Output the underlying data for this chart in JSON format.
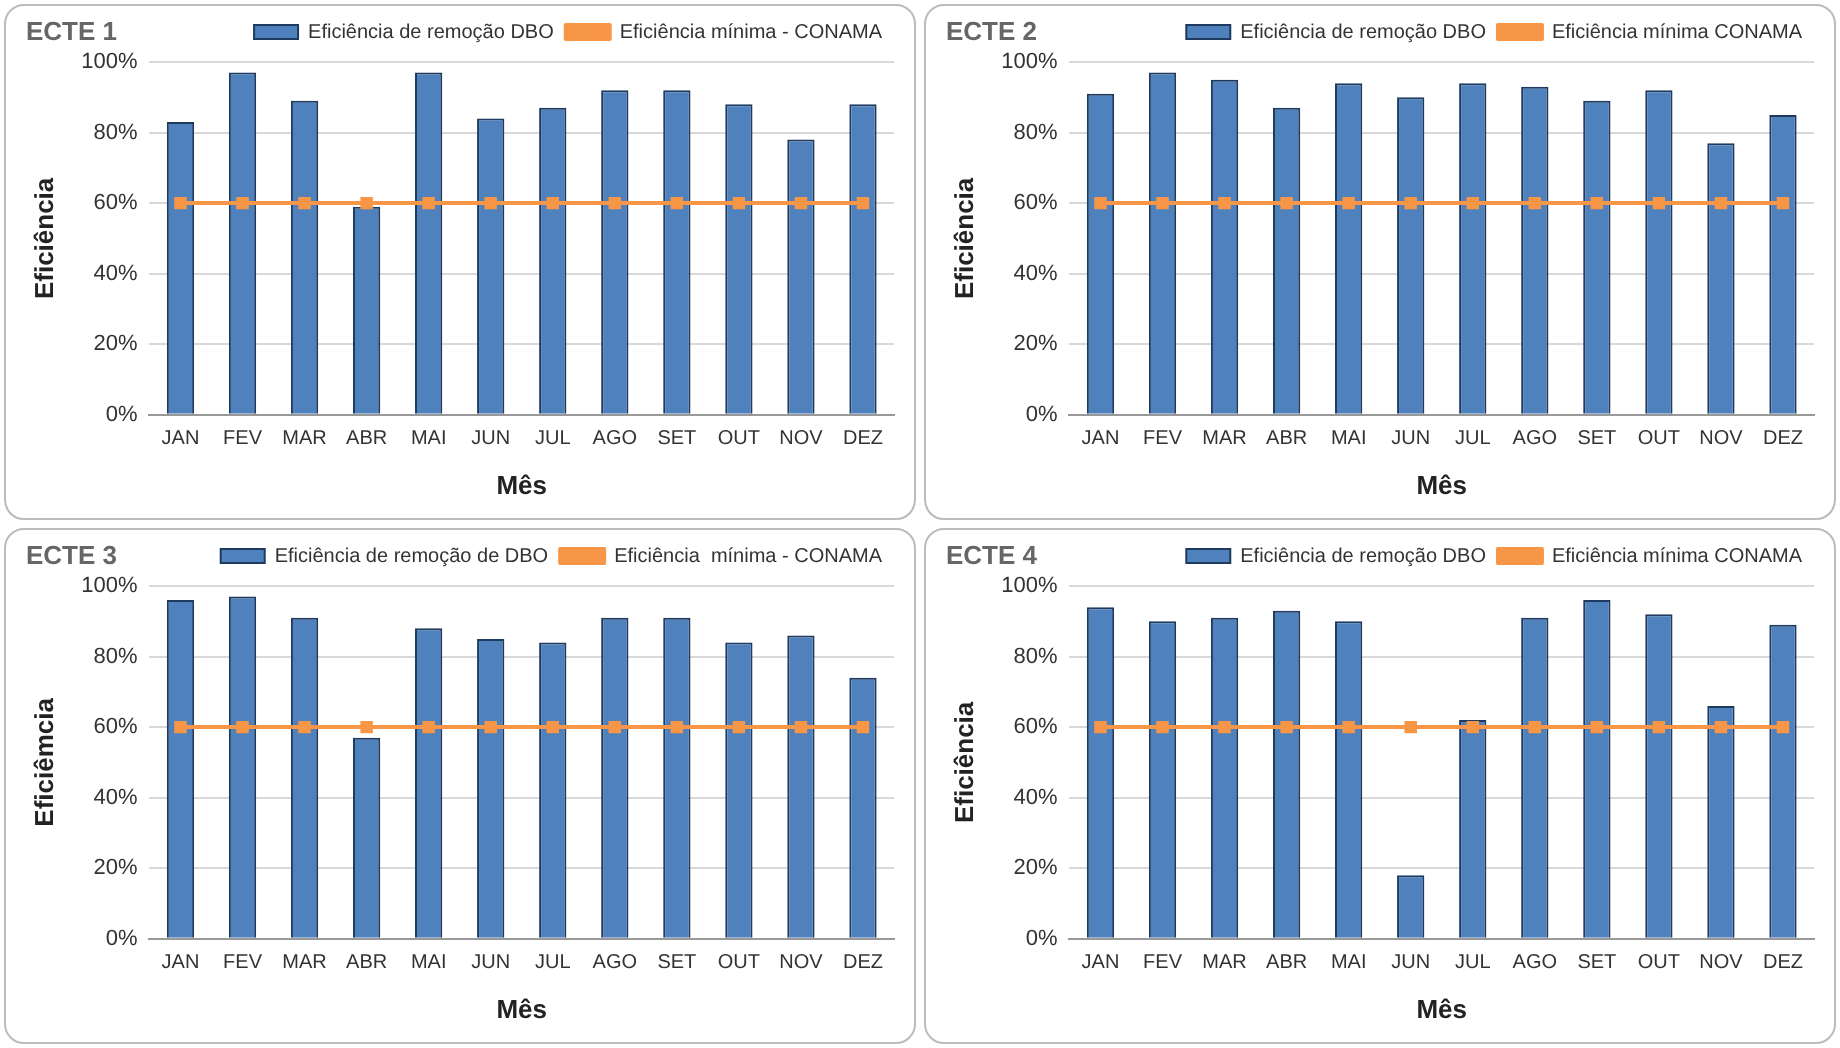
{
  "chart_data": [
    {
      "type": "bar",
      "title": "ECTE 1",
      "xlabel": "Mês",
      "ylabel": "Eficiência",
      "categories": [
        "JAN",
        "FEV",
        "MAR",
        "ABR",
        "MAI",
        "JUN",
        "JUL",
        "AGO",
        "SET",
        "OUT",
        "NOV",
        "DEZ"
      ],
      "series": [
        {
          "name": "Eficiência de remoção DBO",
          "color": "#4f81bd",
          "values": [
            83,
            97,
            89,
            59,
            97,
            84,
            87,
            92,
            92,
            88,
            78,
            88
          ]
        },
        {
          "name": "Eficiência mínima - CONAMA",
          "type": "line",
          "color": "#f79646",
          "marker": "square",
          "values": [
            60,
            60,
            60,
            60,
            60,
            60,
            60,
            60,
            60,
            60,
            60,
            60
          ]
        }
      ],
      "ylim": [
        0,
        100
      ],
      "yticks": [
        {
          "value": 0,
          "label": "0%"
        },
        {
          "value": 20,
          "label": "20%"
        },
        {
          "value": 40,
          "label": "40%"
        },
        {
          "value": 60,
          "label": "60%"
        },
        {
          "value": 80,
          "label": "80%"
        },
        {
          "value": 100,
          "label": "100%"
        }
      ],
      "grid": "y",
      "legend": "top"
    },
    {
      "type": "bar",
      "title": "ECTE 2",
      "xlabel": "Mês",
      "ylabel": "Eficiência",
      "categories": [
        "JAN",
        "FEV",
        "MAR",
        "ABR",
        "MAI",
        "JUN",
        "JUL",
        "AGO",
        "SET",
        "OUT",
        "NOV",
        "DEZ"
      ],
      "series": [
        {
          "name": "Eficiência de remoção DBO",
          "color": "#4f81bd",
          "values": [
            91,
            97,
            95,
            87,
            94,
            90,
            94,
            93,
            89,
            92,
            77,
            85
          ]
        },
        {
          "name": "Eficiência mínima CONAMA",
          "type": "line",
          "color": "#f79646",
          "marker": "square",
          "values": [
            60,
            60,
            60,
            60,
            60,
            60,
            60,
            60,
            60,
            60,
            60,
            60
          ]
        }
      ],
      "ylim": [
        0,
        100
      ],
      "yticks": [
        {
          "value": 0,
          "label": "0%"
        },
        {
          "value": 20,
          "label": "20%"
        },
        {
          "value": 40,
          "label": "40%"
        },
        {
          "value": 60,
          "label": "60%"
        },
        {
          "value": 80,
          "label": "80%"
        },
        {
          "value": 100,
          "label": "100%"
        }
      ],
      "grid": "y",
      "legend": "top"
    },
    {
      "type": "bar",
      "title": "ECTE 3",
      "xlabel": "Mês",
      "ylabel": "Eficiêmcia",
      "categories": [
        "JAN",
        "FEV",
        "MAR",
        "ABR",
        "MAI",
        "JUN",
        "JUL",
        "AGO",
        "SET",
        "OUT",
        "NOV",
        "DEZ"
      ],
      "series": [
        {
          "name": "Eficiência de remoção de DBO",
          "color": "#4f81bd",
          "values": [
            96,
            97,
            91,
            57,
            88,
            85,
            84,
            91,
            91,
            84,
            86,
            74
          ]
        },
        {
          "name": "Eficiência  mínima - CONAMA",
          "type": "line",
          "color": "#f79646",
          "marker": "square",
          "values": [
            60,
            60,
            60,
            60,
            60,
            60,
            60,
            60,
            60,
            60,
            60,
            60
          ]
        }
      ],
      "ylim": [
        0,
        100
      ],
      "yticks": [
        {
          "value": 0,
          "label": "0%"
        },
        {
          "value": 20,
          "label": "20%"
        },
        {
          "value": 40,
          "label": "40%"
        },
        {
          "value": 60,
          "label": "60%"
        },
        {
          "value": 80,
          "label": "80%"
        },
        {
          "value": 100,
          "label": "100%"
        }
      ],
      "grid": "y",
      "legend": "top"
    },
    {
      "type": "bar",
      "title": "ECTE 4",
      "xlabel": "Mês",
      "ylabel": "Eficiência",
      "categories": [
        "JAN",
        "FEV",
        "MAR",
        "ABR",
        "MAI",
        "JUN",
        "JUL",
        "AGO",
        "SET",
        "OUT",
        "NOV",
        "DEZ"
      ],
      "series": [
        {
          "name": "Eficiência de remoção DBO",
          "color": "#4f81bd",
          "values": [
            94,
            90,
            91,
            93,
            90,
            18,
            62,
            91,
            96,
            92,
            66,
            89
          ]
        },
        {
          "name": "Eficiência mínima CONAMA",
          "type": "line",
          "color": "#f79646",
          "marker": "square",
          "values": [
            60,
            60,
            60,
            60,
            60,
            60,
            60,
            60,
            60,
            60,
            60,
            60
          ]
        }
      ],
      "ylim": [
        0,
        100
      ],
      "yticks": [
        {
          "value": 0,
          "label": "0%"
        },
        {
          "value": 20,
          "label": "20%"
        },
        {
          "value": 40,
          "label": "40%"
        },
        {
          "value": 60,
          "label": "60%"
        },
        {
          "value": 80,
          "label": "80%"
        },
        {
          "value": 100,
          "label": "100%"
        }
      ],
      "grid": "y",
      "legend": "top"
    }
  ]
}
